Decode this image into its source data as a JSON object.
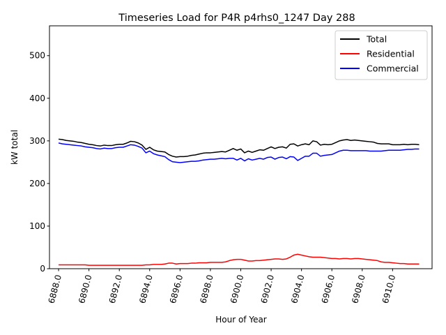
{
  "chart_data": {
    "type": "line",
    "title": "Timeseries Load for P4R p4rhs0_1247  Day 288",
    "xlabel": "Hour of Year",
    "ylabel": "kW total",
    "xlim": [
      6887.4,
      6912.6
    ],
    "ylim": [
      0,
      570
    ],
    "x_ticks": [
      "6888.0",
      "6890.0",
      "6892.0",
      "6894.0",
      "6896.0",
      "6898.0",
      "6900.0",
      "6902.0",
      "6904.0",
      "6906.0",
      "6908.0",
      "6910.0"
    ],
    "x_tick_values": [
      6888,
      6890,
      6892,
      6894,
      6896,
      6898,
      6900,
      6902,
      6904,
      6906,
      6908,
      6910
    ],
    "y_ticks": [
      "0",
      "100",
      "200",
      "300",
      "400",
      "500"
    ],
    "y_tick_values": [
      0,
      100,
      200,
      300,
      400,
      500
    ],
    "legend_position": "top-right",
    "x_start": 6888.0,
    "x_step": 0.25,
    "series": [
      {
        "name": "Total",
        "color": "#000000",
        "values": [
          304,
          303,
          301,
          300,
          299,
          297,
          296,
          294,
          292,
          291,
          289,
          288,
          290,
          289,
          289,
          291,
          292,
          292,
          295,
          299,
          298,
          295,
          290,
          280,
          285,
          279,
          276,
          275,
          274,
          268,
          264,
          262,
          263,
          263,
          264,
          266,
          267,
          269,
          271,
          272,
          272,
          273,
          274,
          275,
          274,
          278,
          282,
          278,
          281,
          272,
          276,
          273,
          276,
          279,
          278,
          282,
          286,
          282,
          285,
          286,
          283,
          292,
          293,
          288,
          291,
          293,
          291,
          300,
          298,
          290,
          292,
          291,
          292,
          296,
          300,
          302,
          303,
          301,
          302,
          301,
          300,
          299,
          298,
          297,
          294,
          293,
          293,
          293,
          291,
          291,
          291,
          292,
          291,
          292,
          292,
          291
        ]
      },
      {
        "name": "Residential",
        "color": "#ff0000",
        "values": [
          9,
          9,
          9,
          9,
          9,
          9,
          9,
          9,
          8,
          8,
          8,
          8,
          8,
          8,
          8,
          8,
          8,
          8,
          8,
          8,
          8,
          8,
          8,
          9,
          9,
          10,
          10,
          10,
          11,
          13,
          13,
          11,
          12,
          12,
          12,
          13,
          13,
          14,
          14,
          14,
          15,
          15,
          15,
          15,
          16,
          19,
          21,
          22,
          22,
          20,
          18,
          18,
          19,
          19,
          20,
          21,
          22,
          23,
          23,
          22,
          23,
          27,
          32,
          34,
          32,
          30,
          28,
          27,
          27,
          27,
          26,
          25,
          24,
          24,
          23,
          24,
          24,
          23,
          24,
          24,
          23,
          22,
          21,
          20,
          19,
          16,
          15,
          15,
          14,
          13,
          12,
          12,
          11,
          11,
          11,
          11
        ]
      },
      {
        "name": "Commercial",
        "color": "#0000ff",
        "values": [
          295,
          293,
          292,
          291,
          290,
          289,
          288,
          286,
          285,
          284,
          282,
          281,
          283,
          282,
          282,
          284,
          285,
          285,
          288,
          291,
          290,
          287,
          283,
          272,
          276,
          270,
          267,
          265,
          263,
          256,
          251,
          250,
          249,
          250,
          251,
          252,
          252,
          253,
          255,
          256,
          257,
          257,
          258,
          259,
          258,
          259,
          259,
          255,
          259,
          253,
          258,
          255,
          257,
          259,
          257,
          261,
          262,
          257,
          261,
          262,
          258,
          263,
          262,
          254,
          259,
          264,
          264,
          271,
          271,
          264,
          266,
          267,
          268,
          272,
          276,
          278,
          278,
          277,
          277,
          277,
          277,
          277,
          276,
          276,
          276,
          276,
          277,
          278,
          278,
          278,
          278,
          279,
          280,
          280,
          281,
          281
        ]
      }
    ]
  }
}
